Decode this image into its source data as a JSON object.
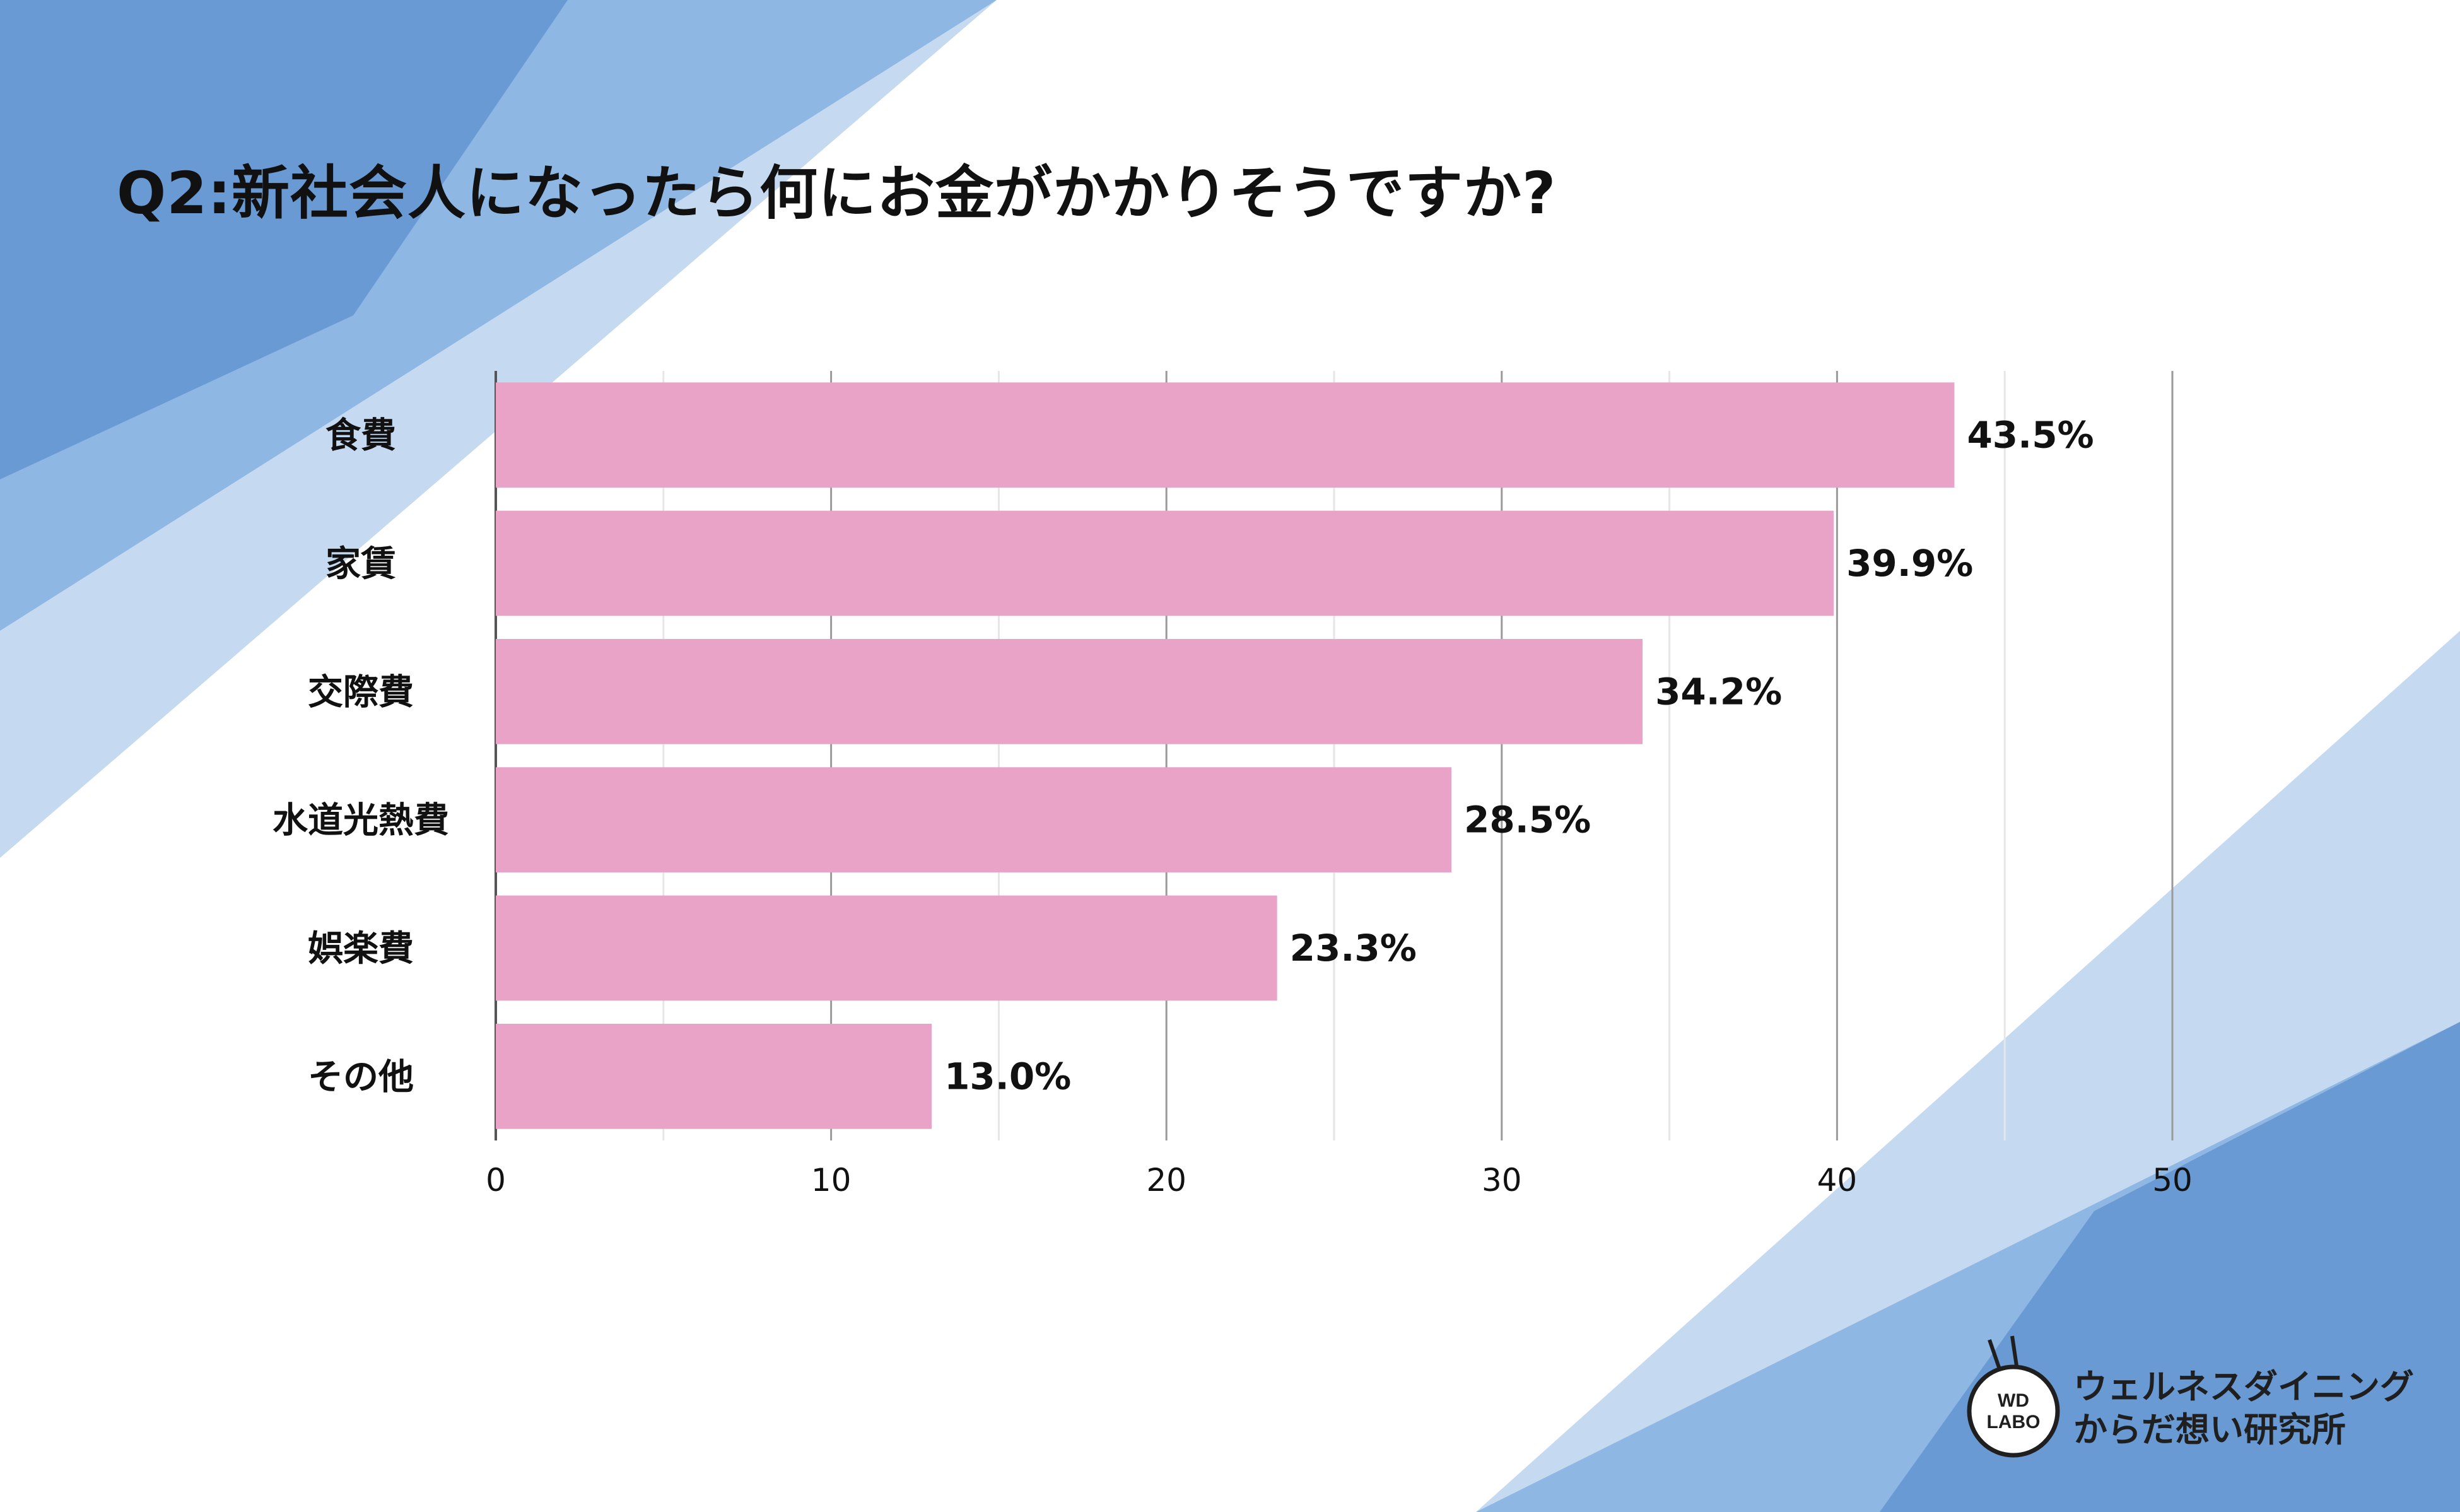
{
  "title": "Q2:新社会人になったら何にお金がかかりそうですか?",
  "chart_data": {
    "type": "bar",
    "orientation": "horizontal",
    "categories": [
      "食費",
      "家賃",
      "交際費",
      "水道光熱費",
      "娯楽費",
      "その他"
    ],
    "values": [
      43.5,
      39.9,
      34.2,
      28.5,
      23.3,
      13.0
    ],
    "value_labels": [
      "43.5%",
      "39.9%",
      "34.2%",
      "28.5%",
      "23.3%",
      "13.0%"
    ],
    "xlim": [
      0,
      50
    ],
    "xticks": [
      0,
      10,
      20,
      30,
      40,
      50
    ],
    "grid": true,
    "bar_color": "#e8a3c7"
  },
  "logo": {
    "mark_line1": "WD",
    "mark_line2": "LABO",
    "line1": "ウェルネスダイニング",
    "line2": "からだ想い研究所"
  },
  "colors": {
    "blue_dark": "#6a9ad3",
    "blue_mid": "#8fb7e3",
    "blue_light": "#c5daf1"
  }
}
